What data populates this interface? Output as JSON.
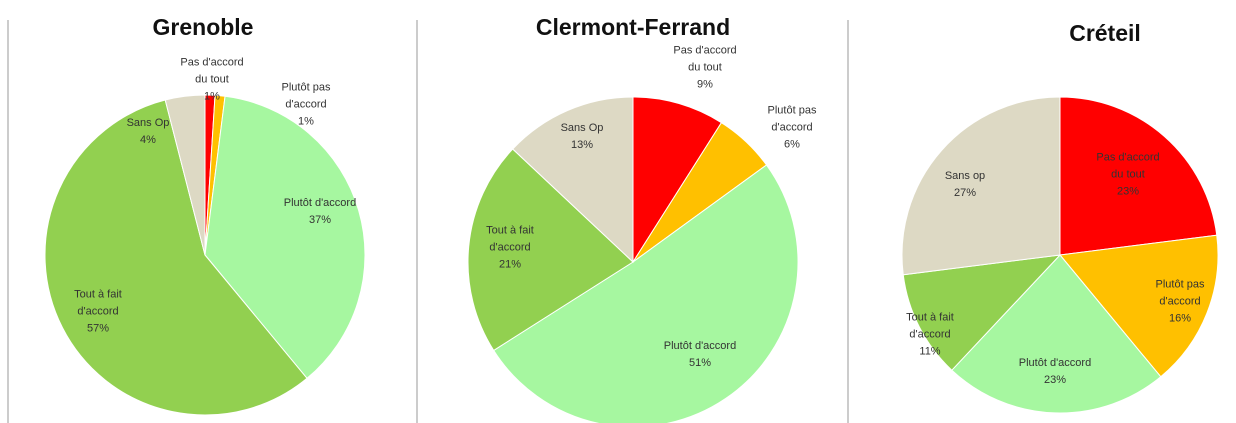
{
  "chart_data": [
    {
      "type": "pie",
      "title": "Grenoble",
      "categories": [
        "Pas d'accord du tout",
        "Plutôt pas d'accord",
        "Plutôt d'accord",
        "Tout à fait d'accord",
        "Sans Op"
      ],
      "values": [
        1,
        1,
        37,
        57,
        4
      ],
      "value_labels": [
        "1%",
        "1%",
        "37%",
        "57%",
        "4%"
      ],
      "colors": [
        "#ff0000",
        "#ffc000",
        "#a6f7a0",
        "#92d050",
        "#ddd9c4"
      ]
    },
    {
      "type": "pie",
      "title": "Clermont-Ferrand",
      "categories": [
        "Pas d'accord du tout",
        "Plutôt pas d'accord",
        "Plutôt d'accord",
        "Tout à fait d'accord",
        "Sans Op"
      ],
      "values": [
        9,
        6,
        51,
        21,
        13
      ],
      "value_labels": [
        "9%",
        "6%",
        "51%",
        "21%",
        "13%"
      ],
      "colors": [
        "#ff0000",
        "#ffc000",
        "#a6f7a0",
        "#92d050",
        "#ddd9c4"
      ]
    },
    {
      "type": "pie",
      "title": "Créteil",
      "categories": [
        "Pas d'accord du tout",
        "Plutôt pas d'accord",
        "Plutôt d'accord",
        "Tout à fait d'accord",
        "Sans op"
      ],
      "values": [
        23,
        16,
        23,
        11,
        27
      ],
      "value_labels": [
        "23%",
        "16%",
        "23%",
        "11%",
        "27%"
      ],
      "colors": [
        "#ff0000",
        "#ffc000",
        "#a6f7a0",
        "#92d050",
        "#ddd9c4"
      ]
    }
  ]
}
